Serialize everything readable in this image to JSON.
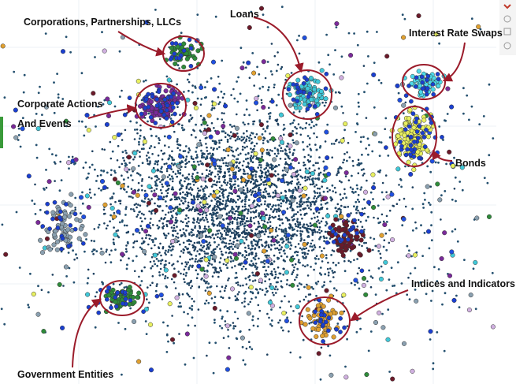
{
  "annotations": [
    {
      "label": "Corporations, Partnerships, LLCs"
    },
    {
      "label": "Loans"
    },
    {
      "label": "Interest Rate Swaps"
    },
    {
      "lines": [
        "Corporate Actions",
        "And Events"
      ]
    },
    {
      "label": "Bonds"
    },
    {
      "label": "Indices and Indicators"
    },
    {
      "label": "Government Entities"
    }
  ]
}
